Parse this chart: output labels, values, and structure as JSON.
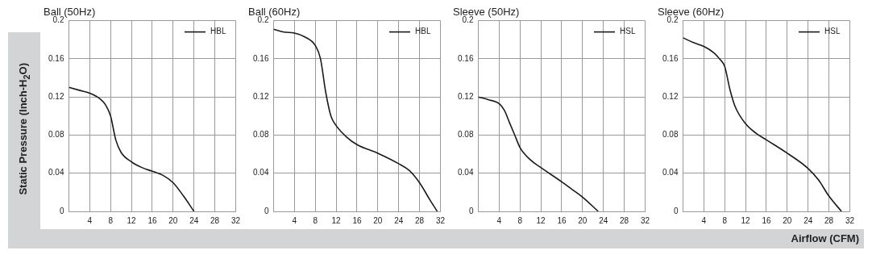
{
  "chart_data": [
    {
      "type": "line",
      "title": "Ball (50Hz)",
      "ylabel": "Static Pressure (Inch-H$_{2}$O)",
      "xlim": [
        0,
        32
      ],
      "xticks": [
        4,
        8,
        12,
        16,
        20,
        24,
        28,
        32
      ],
      "ylim": [
        0,
        0.2
      ],
      "yticks": [
        0,
        0.04,
        0.08,
        0.12,
        0.16,
        0.2
      ],
      "grid": true,
      "legend": "top right",
      "marker": "none",
      "line_style": "solid",
      "series": [
        {
          "name": "HBL",
          "color": "#1a1a1a",
          "x": [
            0,
            2,
            4,
            6,
            7,
            8,
            9,
            10,
            12,
            14,
            16,
            18,
            20,
            22,
            24
          ],
          "values": [
            0.13,
            0.127,
            0.124,
            0.118,
            0.112,
            0.1,
            0.075,
            0.062,
            0.052,
            0.046,
            0.042,
            0.038,
            0.03,
            0.016,
            0
          ]
        }
      ]
    },
    {
      "type": "line",
      "title": "Ball (60Hz)",
      "xlim": [
        0,
        32
      ],
      "xticks": [
        4,
        8,
        12,
        16,
        20,
        24,
        28,
        32
      ],
      "ylim": [
        0,
        0.2
      ],
      "yticks": [
        0,
        0.04,
        0.08,
        0.12,
        0.16,
        0.2
      ],
      "grid": true,
      "legend": "top right",
      "marker": "none",
      "line_style": "solid",
      "series": [
        {
          "name": "HBL",
          "color": "#1a1a1a",
          "x": [
            0,
            2,
            4,
            6,
            8,
            9,
            10,
            11,
            12,
            14,
            16,
            20,
            24,
            26,
            28,
            30,
            31.4
          ],
          "values": [
            0.191,
            0.188,
            0.187,
            0.183,
            0.174,
            0.16,
            0.125,
            0.1,
            0.09,
            0.078,
            0.07,
            0.061,
            0.05,
            0.043,
            0.03,
            0.012,
            0
          ]
        }
      ]
    },
    {
      "type": "line",
      "title": "Sleeve (50Hz)",
      "xlim": [
        0,
        32
      ],
      "xticks": [
        4,
        8,
        12,
        16,
        20,
        24,
        28,
        32
      ],
      "ylim": [
        0,
        0.2
      ],
      "yticks": [
        0,
        0.04,
        0.08,
        0.12,
        0.16,
        0.2
      ],
      "grid": true,
      "legend": "top right",
      "marker": "none",
      "line_style": "solid",
      "series": [
        {
          "name": "HSL",
          "color": "#1a1a1a",
          "x": [
            0,
            2,
            4,
            5,
            6,
            7,
            8,
            10,
            12,
            16,
            18,
            20,
            23
          ],
          "values": [
            0.12,
            0.117,
            0.113,
            0.106,
            0.093,
            0.08,
            0.067,
            0.054,
            0.046,
            0.031,
            0.023,
            0.015,
            0
          ]
        }
      ]
    },
    {
      "type": "line",
      "title": "Sleeve (60Hz)",
      "xlabel": "Airflow (CFM)",
      "xlim": [
        0,
        32
      ],
      "xticks": [
        4,
        8,
        12,
        16,
        20,
        24,
        28,
        32
      ],
      "ylim": [
        0,
        0.2
      ],
      "yticks": [
        0,
        0.04,
        0.08,
        0.12,
        0.16,
        0.2
      ],
      "grid": true,
      "legend": "top right",
      "marker": "none",
      "line_style": "solid",
      "series": [
        {
          "name": "HSL",
          "color": "#1a1a1a",
          "x": [
            0,
            2,
            4,
            6,
            7,
            8,
            9,
            10,
            12,
            14,
            16,
            20,
            24,
            26,
            28,
            30.4
          ],
          "values": [
            0.182,
            0.177,
            0.173,
            0.166,
            0.16,
            0.152,
            0.128,
            0.11,
            0.092,
            0.082,
            0.075,
            0.061,
            0.045,
            0.033,
            0.016,
            0
          ]
        }
      ]
    }
  ]
}
